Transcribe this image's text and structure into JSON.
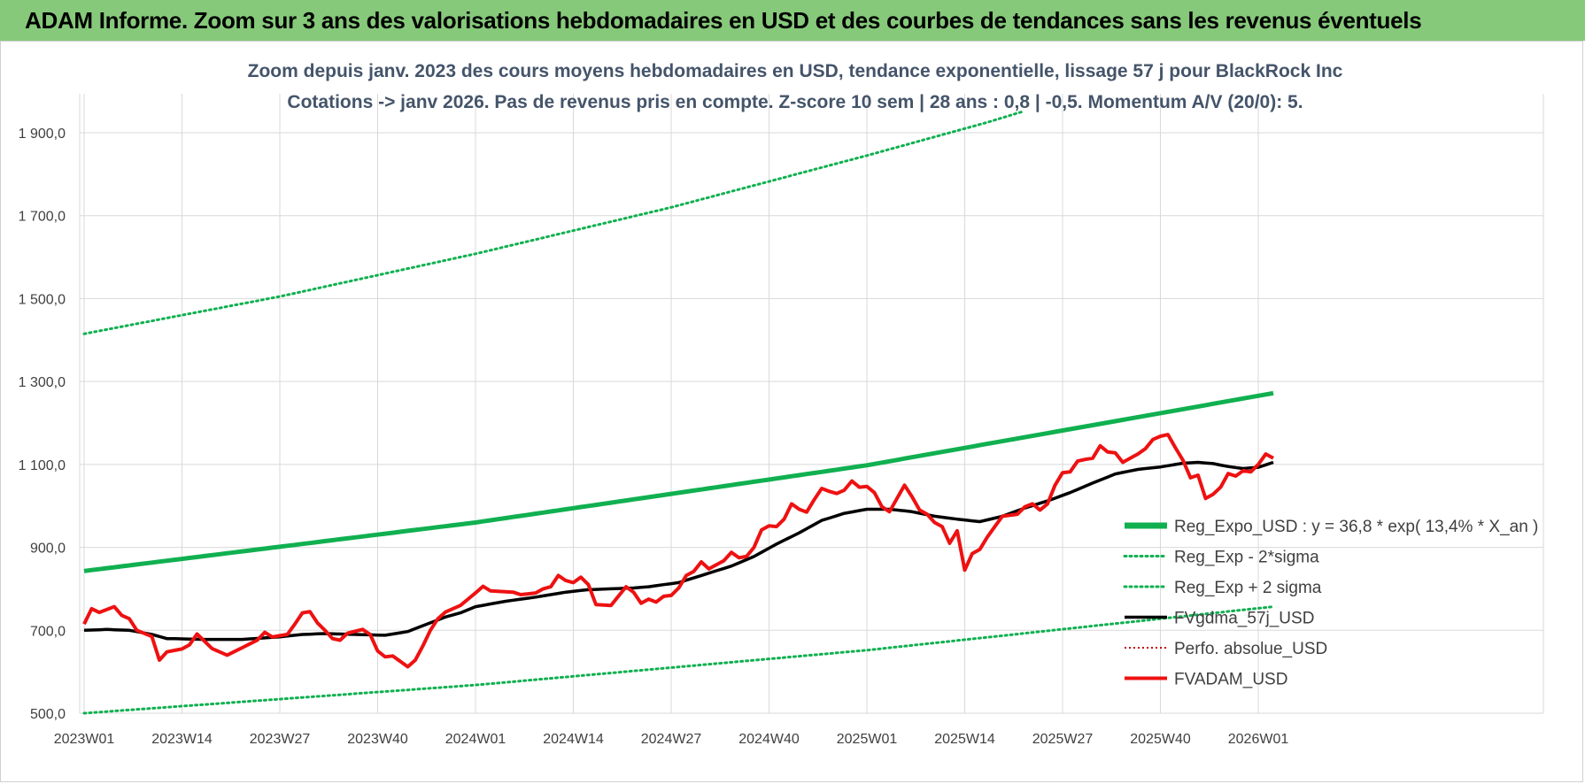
{
  "header": {
    "title": "ADAM Informe. Zoom sur 3 ans des valorisations hebdomadaires en USD et des courbes de tendances sans les revenus éventuels"
  },
  "colors": {
    "header_bg": "#86c97a",
    "reg": "#10b050",
    "fvadam": "#ee1111",
    "fvgdma": "#000000",
    "perfo": "#c00000",
    "grid": "#d9d9d9"
  },
  "chart_data": {
    "type": "line",
    "title_line1": "Zoom depuis janv. 2023 des cours moyens hebdomadaires en USD, tendance exponentielle, lissage 57 j pour BlackRock Inc",
    "title_line2": "Cotations -> janv 2026. Pas de revenus pris en compte. Z-score 10 sem | 28 ans : 0,8 | -0,5. Momentum A/V (20/0): 5.",
    "ylim": [
      500,
      1950
    ],
    "y_ticks": [
      500,
      700,
      900,
      1100,
      1300,
      1500,
      1700,
      1900
    ],
    "y_tick_labels": [
      "500,0",
      "700,0",
      "900,0",
      "1 100,0",
      "1 300,0",
      "1 500,0",
      "1 700,0",
      "1 900,0"
    ],
    "x_count": 159,
    "x_ticks": [
      0,
      13,
      26,
      39,
      52,
      65,
      78,
      91,
      104,
      117,
      130,
      143,
      156
    ],
    "x_tick_labels": [
      "2023W01",
      "2023W14",
      "2023W27",
      "2023W40",
      "2024W01",
      "2024W14",
      "2024W27",
      "2024W40",
      "2025W01",
      "2025W14",
      "2025W27",
      "2025W40",
      "2026W01"
    ],
    "series": [
      {
        "name": "Reg_Expo_USD : y = 36,8 * exp( 13,4% *  X_an )",
        "style": "thick-green",
        "anchors": [
          [
            0,
            843
          ],
          [
            52,
            960
          ],
          [
            104,
            1098
          ],
          [
            158,
            1272
          ]
        ]
      },
      {
        "name": "Reg_Exp - 2*sigma",
        "style": "dotted-green",
        "anchors": [
          [
            0,
            500
          ],
          [
            52,
            568
          ],
          [
            104,
            652
          ],
          [
            158,
            757
          ]
        ]
      },
      {
        "name": "Reg_Exp + 2 sigma",
        "style": "dotted-green",
        "anchors": [
          [
            0,
            1415
          ],
          [
            26,
            1505
          ],
          [
            52,
            1608
          ],
          [
            78,
            1720
          ],
          [
            104,
            1845
          ],
          [
            120,
            1925
          ],
          [
            124.5,
            1950
          ]
        ]
      },
      {
        "name": "FVgdma_57j_USD",
        "style": "black",
        "anchors": [
          [
            0,
            700
          ],
          [
            3,
            702
          ],
          [
            6,
            700
          ],
          [
            9,
            690
          ],
          [
            11,
            680
          ],
          [
            16,
            678
          ],
          [
            21,
            678
          ],
          [
            26,
            684
          ],
          [
            29,
            690
          ],
          [
            32,
            692
          ],
          [
            36,
            690
          ],
          [
            40,
            688
          ],
          [
            43,
            697
          ],
          [
            46,
            718
          ],
          [
            48,
            732
          ],
          [
            50,
            742
          ],
          [
            52,
            757
          ],
          [
            56,
            770
          ],
          [
            60,
            780
          ],
          [
            64,
            792
          ],
          [
            67,
            798
          ],
          [
            70,
            800
          ],
          [
            73,
            802
          ],
          [
            75,
            805
          ],
          [
            79,
            815
          ],
          [
            82,
            832
          ],
          [
            86,
            855
          ],
          [
            89,
            878
          ],
          [
            92,
            908
          ],
          [
            95,
            935
          ],
          [
            98,
            965
          ],
          [
            101,
            982
          ],
          [
            104,
            992
          ],
          [
            107,
            992
          ],
          [
            110,
            986
          ],
          [
            113,
            975
          ],
          [
            116,
            968
          ],
          [
            119,
            962
          ],
          [
            122,
            975
          ],
          [
            125,
            995
          ],
          [
            128,
            1012
          ],
          [
            131,
            1032
          ],
          [
            134,
            1055
          ],
          [
            137,
            1077
          ],
          [
            140,
            1088
          ],
          [
            143,
            1094
          ],
          [
            146,
            1103
          ],
          [
            148,
            1105
          ],
          [
            150,
            1102
          ],
          [
            152,
            1095
          ],
          [
            154,
            1090
          ],
          [
            156,
            1093
          ],
          [
            158,
            1105
          ]
        ]
      },
      {
        "name": "Perfo. absolue_USD",
        "style": "red-dotted",
        "anchors": []
      },
      {
        "name": "FVADAM_USD",
        "style": "red",
        "anchors": [
          [
            0,
            715
          ],
          [
            1,
            752
          ],
          [
            2,
            743
          ],
          [
            4,
            757
          ],
          [
            5,
            736
          ],
          [
            6,
            728
          ],
          [
            7,
            700
          ],
          [
            9,
            685
          ],
          [
            10,
            628
          ],
          [
            11,
            648
          ],
          [
            13,
            655
          ],
          [
            14,
            665
          ],
          [
            15,
            691
          ],
          [
            17,
            656
          ],
          [
            19,
            640
          ],
          [
            21,
            658
          ],
          [
            23,
            676
          ],
          [
            24,
            695
          ],
          [
            25,
            684
          ],
          [
            27,
            690
          ],
          [
            28,
            715
          ],
          [
            29,
            742
          ],
          [
            30,
            745
          ],
          [
            31,
            718
          ],
          [
            32,
            700
          ],
          [
            33,
            680
          ],
          [
            34,
            676
          ],
          [
            35,
            693
          ],
          [
            37,
            702
          ],
          [
            38,
            690
          ],
          [
            39,
            650
          ],
          [
            40,
            636
          ],
          [
            41,
            638
          ],
          [
            43,
            612
          ],
          [
            44,
            628
          ],
          [
            45,
            662
          ],
          [
            46,
            700
          ],
          [
            47,
            728
          ],
          [
            48,
            744
          ],
          [
            50,
            760
          ],
          [
            52,
            790
          ],
          [
            53,
            806
          ],
          [
            54,
            795
          ],
          [
            57,
            792
          ],
          [
            58,
            786
          ],
          [
            60,
            790
          ],
          [
            61,
            800
          ],
          [
            62,
            805
          ],
          [
            63,
            832
          ],
          [
            64,
            820
          ],
          [
            65,
            815
          ],
          [
            66,
            828
          ],
          [
            67,
            810
          ],
          [
            68,
            762
          ],
          [
            70,
            760
          ],
          [
            72,
            805
          ],
          [
            73,
            792
          ],
          [
            74,
            765
          ],
          [
            75,
            775
          ],
          [
            76,
            768
          ],
          [
            77,
            782
          ],
          [
            78,
            784
          ],
          [
            79,
            802
          ],
          [
            80,
            832
          ],
          [
            81,
            842
          ],
          [
            82,
            865
          ],
          [
            83,
            848
          ],
          [
            85,
            868
          ],
          [
            86,
            888
          ],
          [
            87,
            875
          ],
          [
            88,
            878
          ],
          [
            89,
            900
          ],
          [
            90,
            942
          ],
          [
            91,
            952
          ],
          [
            92,
            950
          ],
          [
            93,
            968
          ],
          [
            94,
            1005
          ],
          [
            95,
            992
          ],
          [
            96,
            985
          ],
          [
            97,
            1015
          ],
          [
            98,
            1042
          ],
          [
            99,
            1035
          ],
          [
            100,
            1030
          ],
          [
            101,
            1038
          ],
          [
            102,
            1060
          ],
          [
            103,
            1045
          ],
          [
            104,
            1047
          ],
          [
            105,
            1032
          ],
          [
            106,
            998
          ],
          [
            107,
            986
          ],
          [
            108,
            1018
          ],
          [
            109,
            1050
          ],
          [
            110,
            1022
          ],
          [
            111,
            990
          ],
          [
            112,
            980
          ],
          [
            113,
            960
          ],
          [
            114,
            950
          ],
          [
            115,
            910
          ],
          [
            116,
            940
          ],
          [
            117,
            845
          ],
          [
            118,
            885
          ],
          [
            119,
            895
          ],
          [
            120,
            925
          ],
          [
            121,
            950
          ],
          [
            122,
            975
          ],
          [
            124,
            980
          ],
          [
            125,
            998
          ],
          [
            126,
            1005
          ],
          [
            127,
            990
          ],
          [
            128,
            1005
          ],
          [
            129,
            1050
          ],
          [
            130,
            1080
          ],
          [
            131,
            1082
          ],
          [
            132,
            1108
          ],
          [
            133,
            1112
          ],
          [
            134,
            1115
          ],
          [
            135,
            1145
          ],
          [
            136,
            1130
          ],
          [
            137,
            1128
          ],
          [
            138,
            1105
          ],
          [
            139,
            1115
          ],
          [
            140,
            1125
          ],
          [
            141,
            1138
          ],
          [
            142,
            1160
          ],
          [
            143,
            1168
          ],
          [
            144,
            1172
          ],
          [
            145,
            1140
          ],
          [
            146,
            1110
          ],
          [
            147,
            1068
          ],
          [
            148,
            1074
          ],
          [
            149,
            1018
          ],
          [
            150,
            1028
          ],
          [
            151,
            1045
          ],
          [
            152,
            1078
          ],
          [
            153,
            1072
          ],
          [
            154,
            1085
          ],
          [
            155,
            1082
          ],
          [
            156,
            1100
          ],
          [
            157,
            1125
          ],
          [
            158,
            1115
          ]
        ]
      }
    ],
    "legend_position": "bottom-right"
  }
}
